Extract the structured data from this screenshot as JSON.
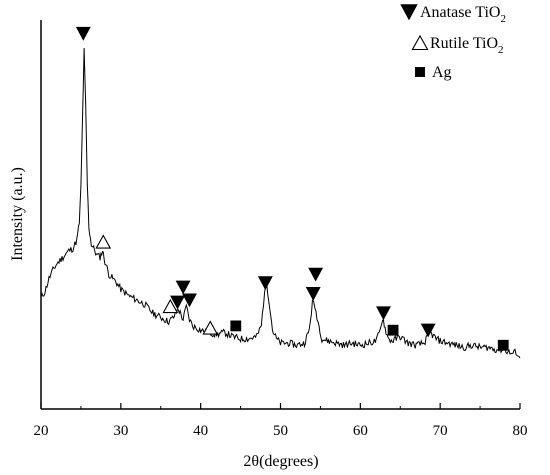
{
  "chart_data": {
    "type": "line",
    "xlabel": "2θ(degrees)",
    "ylabel": "Intensity (a.u.)",
    "xlim": [
      20,
      80
    ],
    "x_ticks": [
      20,
      30,
      40,
      50,
      60,
      70,
      80
    ],
    "y_ticks_labeled": false,
    "grid": false,
    "legend_placement": "top-right",
    "legend": [
      {
        "marker": "filled-down-triangle",
        "label": "Anatase TiO",
        "subscript": "2"
      },
      {
        "marker": "open-up-triangle",
        "label": "Rutile TiO",
        "subscript": "2"
      },
      {
        "marker": "filled-square",
        "label": "Ag",
        "subscript": ""
      }
    ],
    "series": [
      {
        "color": "#000000",
        "x": [
          20.0,
          20.5,
          21.0,
          21.5,
          22.0,
          22.5,
          23.0,
          23.5,
          24.0,
          24.5,
          24.8,
          25.0,
          25.2,
          25.4,
          25.6,
          25.8,
          26.0,
          26.3,
          26.6,
          27.0,
          27.4,
          27.7,
          28.0,
          28.5,
          29.0,
          29.5,
          30.0,
          31.0,
          32.0,
          33.0,
          34.0,
          35.0,
          36.0,
          36.6,
          37.2,
          37.8,
          38.2,
          38.6,
          39.0,
          40.0,
          41.0,
          42.0,
          43.0,
          44.0,
          45.0,
          46.0,
          47.0,
          47.6,
          48.0,
          48.3,
          48.6,
          49.0,
          49.5,
          50.0,
          51.0,
          52.0,
          53.0,
          53.6,
          54.0,
          54.3,
          54.7,
          55.2,
          56.0,
          57.0,
          58.0,
          59.0,
          60.0,
          61.0,
          62.0,
          62.5,
          62.8,
          63.1,
          63.5,
          64.0,
          65.0,
          66.0,
          67.0,
          68.0,
          68.7,
          69.5,
          70.0,
          71.0,
          72.0,
          73.0,
          74.0,
          75.0,
          76.0,
          77.0,
          78.0,
          79.0,
          79.5,
          80.0
        ],
        "y": [
          27.0,
          30.0,
          36.0,
          40.0,
          43.0,
          45.0,
          47.0,
          49.0,
          50.0,
          54.0,
          62.0,
          78.0,
          110.0,
          142.0,
          116.0,
          80.0,
          60.0,
          52.0,
          50.0,
          47.0,
          46.0,
          49.0,
          44.0,
          38.0,
          36.0,
          34.0,
          31.0,
          28.0,
          26.0,
          24.0,
          20.0,
          18.0,
          16.0,
          18.0,
          22.0,
          17.0,
          23.0,
          17.0,
          14.0,
          12.0,
          11.0,
          10.0,
          11.0,
          9.0,
          8.0,
          8.0,
          9.0,
          14.0,
          30.0,
          33.0,
          25.0,
          12.0,
          8.0,
          6.0,
          6.0,
          5.0,
          6.0,
          12.0,
          25.0,
          23.0,
          16.0,
          8.0,
          7.0,
          6.0,
          5.0,
          6.0,
          5.0,
          6.0,
          7.0,
          12.0,
          18.0,
          13.0,
          8.0,
          7.0,
          9.0,
          6.0,
          5.0,
          6.0,
          11.0,
          8.0,
          7.0,
          6.0,
          5.0,
          4.0,
          5.0,
          4.0,
          4.0,
          3.0,
          3.0,
          1.0,
          2.0,
          -1.0
        ]
      }
    ],
    "annotations": [
      {
        "marker": "filled-down-triangle",
        "x": 25.3,
        "y": 150
      },
      {
        "marker": "open-up-triangle",
        "x": 27.8,
        "y": 53
      },
      {
        "marker": "open-up-triangle",
        "x": 36.2,
        "y": 23
      },
      {
        "marker": "filled-down-triangle",
        "x": 37.1,
        "y": 25
      },
      {
        "marker": "filled-down-triangle",
        "x": 37.8,
        "y": 32
      },
      {
        "marker": "filled-down-triangle",
        "x": 38.6,
        "y": 26
      },
      {
        "marker": "open-up-triangle",
        "x": 41.2,
        "y": 13
      },
      {
        "marker": "filled-square",
        "x": 44.4,
        "y": 14
      },
      {
        "marker": "filled-down-triangle",
        "x": 48.1,
        "y": 34
      },
      {
        "marker": "filled-down-triangle",
        "x": 54.1,
        "y": 29
      },
      {
        "marker": "filled-down-triangle",
        "x": 54.4,
        "y": 38
      },
      {
        "marker": "filled-down-triangle",
        "x": 62.9,
        "y": 20
      },
      {
        "marker": "filled-square",
        "x": 64.1,
        "y": 12
      },
      {
        "marker": "filled-down-triangle",
        "x": 68.5,
        "y": 12
      },
      {
        "marker": "filled-square",
        "x": 77.9,
        "y": 5
      }
    ]
  }
}
